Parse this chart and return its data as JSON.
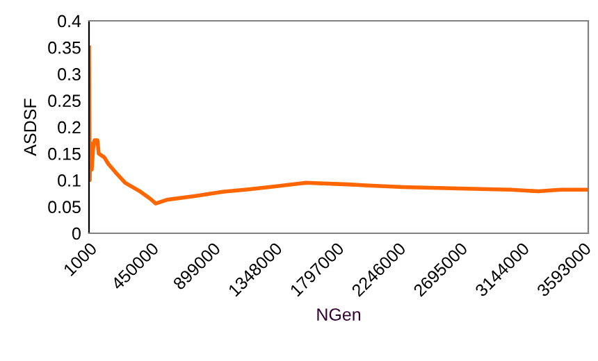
{
  "chart_data": {
    "type": "line",
    "xlabel": "NGen",
    "ylabel": "ASDSF",
    "x": [
      1000,
      6000,
      11000,
      21000,
      31000,
      41000,
      62000,
      72000,
      112000,
      143000,
      193000,
      264000,
      365000,
      446000,
      486000,
      567000,
      769000,
      972000,
      1174000,
      1376000,
      1578000,
      1882000,
      2033000,
      2286000,
      2741000,
      3065000,
      3267000,
      3429000,
      3621000
    ],
    "series": [
      {
        "color": "#ff6600",
        "values": [
          0.35,
          0.1,
          0.17,
          0.12,
          0.16,
          0.175,
          0.175,
          0.15,
          0.143,
          0.13,
          0.115,
          0.095,
          0.08,
          0.065,
          0.056,
          0.063,
          0.07,
          0.078,
          0.083,
          0.089,
          0.095,
          0.092,
          0.09,
          0.087,
          0.084,
          0.082,
          0.079,
          0.082,
          0.082
        ]
      }
    ],
    "xlim": [
      1000,
      3630000
    ],
    "xticks": [
      1000,
      450000,
      899000,
      1348000,
      1797000,
      2246000,
      2695000,
      3144000,
      3593000
    ],
    "ylim": [
      0,
      0.4
    ],
    "yticks": [
      0,
      0.05,
      0.1,
      0.15,
      0.2,
      0.25,
      0.3,
      0.35,
      0.4
    ],
    "grid": false,
    "legend": false,
    "marker": "none",
    "line_style": "solid"
  }
}
